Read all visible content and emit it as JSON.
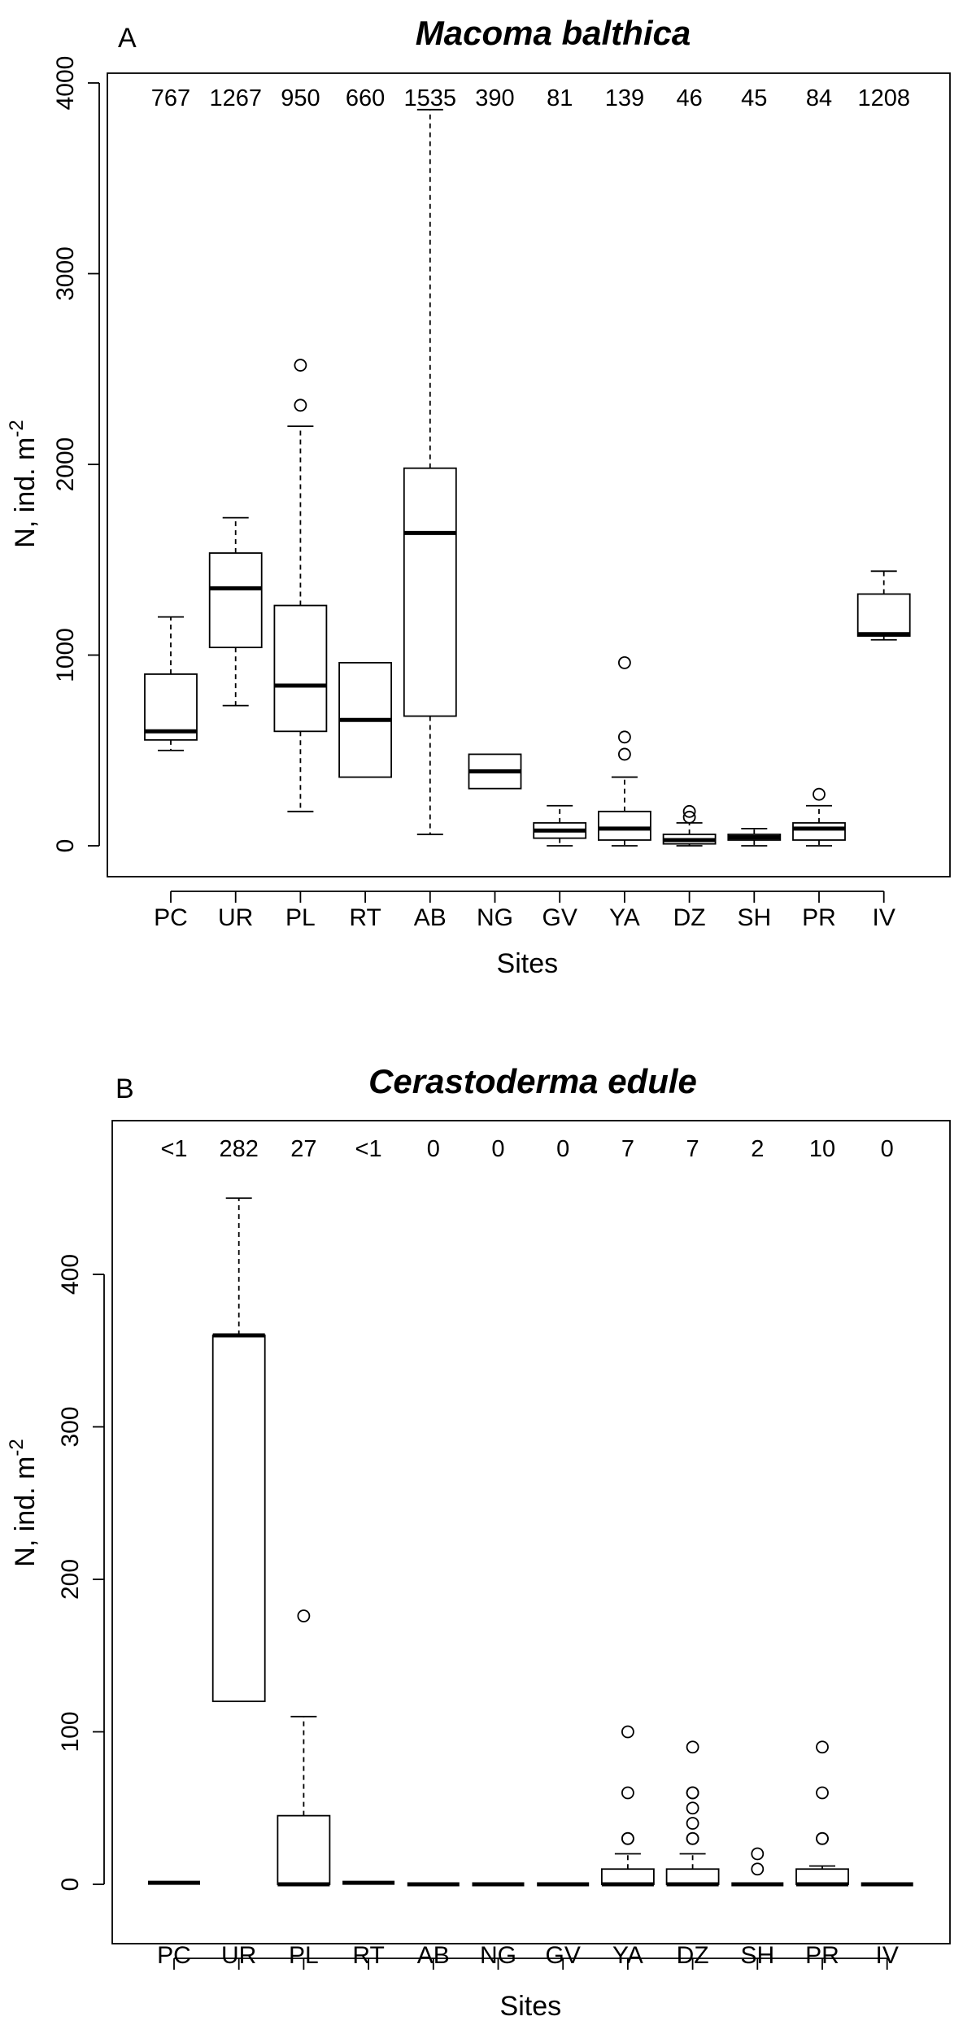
{
  "chart_data": [
    {
      "type": "box",
      "panel_label": "A",
      "title": "Macoma balthica",
      "xlabel": "Sites",
      "ylabel": "N, ind. m",
      "ylabel_superscript": "-2",
      "ylim": [
        0,
        4000
      ],
      "yticks": [
        0,
        1000,
        2000,
        3000,
        4000
      ],
      "categories": [
        "PC",
        "UR",
        "PL",
        "RT",
        "AB",
        "NG",
        "GV",
        "YA",
        "DZ",
        "SH",
        "PR",
        "IV"
      ],
      "n_labels": [
        "767",
        "1267",
        "950",
        "660",
        "1535",
        "390",
        "81",
        "139",
        "46",
        "45",
        "84",
        "1208"
      ],
      "boxes": [
        {
          "whisker_low": 500,
          "q1": 555,
          "median": 600,
          "q3": 900,
          "whisker_high": 1200,
          "outliers": []
        },
        {
          "whisker_low": 735,
          "q1": 1040,
          "median": 1350,
          "q3": 1535,
          "whisker_high": 1720,
          "outliers": []
        },
        {
          "whisker_low": 180,
          "q1": 600,
          "median": 840,
          "q3": 1260,
          "whisker_high": 2200,
          "outliers": [
            2310,
            2520
          ]
        },
        {
          "whisker_low": 360,
          "q1": 360,
          "median": 660,
          "q3": 960,
          "whisker_high": 960,
          "outliers": []
        },
        {
          "whisker_low": 60,
          "q1": 680,
          "median": 1640,
          "q3": 1980,
          "whisker_high": 3860,
          "outliers": []
        },
        {
          "whisker_low": 300,
          "q1": 300,
          "median": 390,
          "q3": 480,
          "whisker_high": 480,
          "outliers": []
        },
        {
          "whisker_low": 0,
          "q1": 40,
          "median": 80,
          "q3": 120,
          "whisker_high": 210,
          "outliers": []
        },
        {
          "whisker_low": 0,
          "q1": 30,
          "median": 90,
          "q3": 180,
          "whisker_high": 360,
          "outliers": [
            480,
            570,
            960
          ]
        },
        {
          "whisker_low": 0,
          "q1": 10,
          "median": 30,
          "q3": 60,
          "whisker_high": 120,
          "outliers": [
            150,
            180
          ]
        },
        {
          "whisker_low": 0,
          "q1": 30,
          "median": 45,
          "q3": 60,
          "whisker_high": 90,
          "outliers": []
        },
        {
          "whisker_low": 0,
          "q1": 30,
          "median": 90,
          "q3": 120,
          "whisker_high": 210,
          "outliers": [
            270
          ]
        },
        {
          "whisker_low": 1080,
          "q1": 1100,
          "median": 1110,
          "q3": 1320,
          "whisker_high": 1440,
          "outliers": []
        }
      ]
    },
    {
      "type": "box",
      "panel_label": "B",
      "title": "Cerastoderma edule",
      "xlabel": "Sites",
      "ylabel": "N, ind. m",
      "ylabel_superscript": "-2",
      "ylim": [
        0,
        480
      ],
      "yticks": [
        0,
        100,
        200,
        300,
        400
      ],
      "categories": [
        "PC",
        "UR",
        "PL",
        "RT",
        "AB",
        "NG",
        "GV",
        "YA",
        "DZ",
        "SH",
        "PR",
        "IV"
      ],
      "n_labels": [
        "<1",
        "282",
        "27",
        "<1",
        "0",
        "0",
        "0",
        "7",
        "7",
        "2",
        "10",
        "0"
      ],
      "boxes": [
        {
          "whisker_low": 1,
          "q1": 1,
          "median": 1,
          "q3": 1,
          "whisker_high": 1,
          "outliers": []
        },
        {
          "whisker_low": 120,
          "q1": 120,
          "median": 360,
          "q3": 360,
          "whisker_high": 450,
          "outliers": []
        },
        {
          "whisker_low": 0,
          "q1": 0,
          "median": 0,
          "q3": 45,
          "whisker_high": 110,
          "outliers": [
            176
          ]
        },
        {
          "whisker_low": 1,
          "q1": 1,
          "median": 1,
          "q3": 1,
          "whisker_high": 1,
          "outliers": []
        },
        {
          "whisker_low": 0,
          "q1": 0,
          "median": 0,
          "q3": 0,
          "whisker_high": 0,
          "outliers": []
        },
        {
          "whisker_low": 0,
          "q1": 0,
          "median": 0,
          "q3": 0,
          "whisker_high": 0,
          "outliers": []
        },
        {
          "whisker_low": 0,
          "q1": 0,
          "median": 0,
          "q3": 0,
          "whisker_high": 0,
          "outliers": []
        },
        {
          "whisker_low": 0,
          "q1": 0,
          "median": 0,
          "q3": 10,
          "whisker_high": 20,
          "outliers": [
            30,
            30,
            60,
            100
          ]
        },
        {
          "whisker_low": 0,
          "q1": 0,
          "median": 0,
          "q3": 10,
          "whisker_high": 20,
          "outliers": [
            30,
            30,
            40,
            50,
            60,
            60,
            90
          ]
        },
        {
          "whisker_low": 0,
          "q1": 0,
          "median": 0,
          "q3": 0,
          "whisker_high": 0,
          "outliers": [
            10,
            20
          ]
        },
        {
          "whisker_low": 0,
          "q1": 0,
          "median": 0,
          "q3": 10,
          "whisker_high": 12,
          "outliers": [
            30,
            30,
            60,
            90
          ]
        },
        {
          "whisker_low": 0,
          "q1": 0,
          "median": 0,
          "q3": 0,
          "whisker_high": 0,
          "outliers": []
        }
      ]
    }
  ]
}
